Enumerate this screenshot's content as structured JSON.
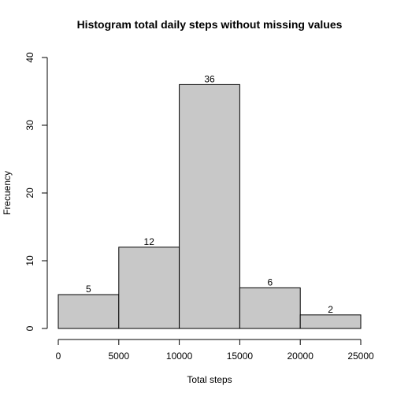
{
  "chart_data": {
    "type": "bar",
    "title": "Histogram total daily steps without missing values",
    "xlabel": "Total steps",
    "ylabel": "Frecuency",
    "bins": [
      {
        "from": 0,
        "to": 5000,
        "value": 5
      },
      {
        "from": 5000,
        "to": 10000,
        "value": 12
      },
      {
        "from": 10000,
        "to": 15000,
        "value": 36
      },
      {
        "from": 15000,
        "to": 20000,
        "value": 6
      },
      {
        "from": 20000,
        "to": 25000,
        "value": 2
      }
    ],
    "xlim": [
      0,
      25000
    ],
    "ylim": [
      0,
      40
    ],
    "x_ticks": [
      0,
      5000,
      10000,
      15000,
      20000,
      25000
    ],
    "y_ticks": [
      0,
      10,
      20,
      30,
      40
    ],
    "grid": false,
    "legend": "none",
    "colors": {
      "bar_fill": "#c8c8c8",
      "bar_stroke": "#000000"
    }
  }
}
